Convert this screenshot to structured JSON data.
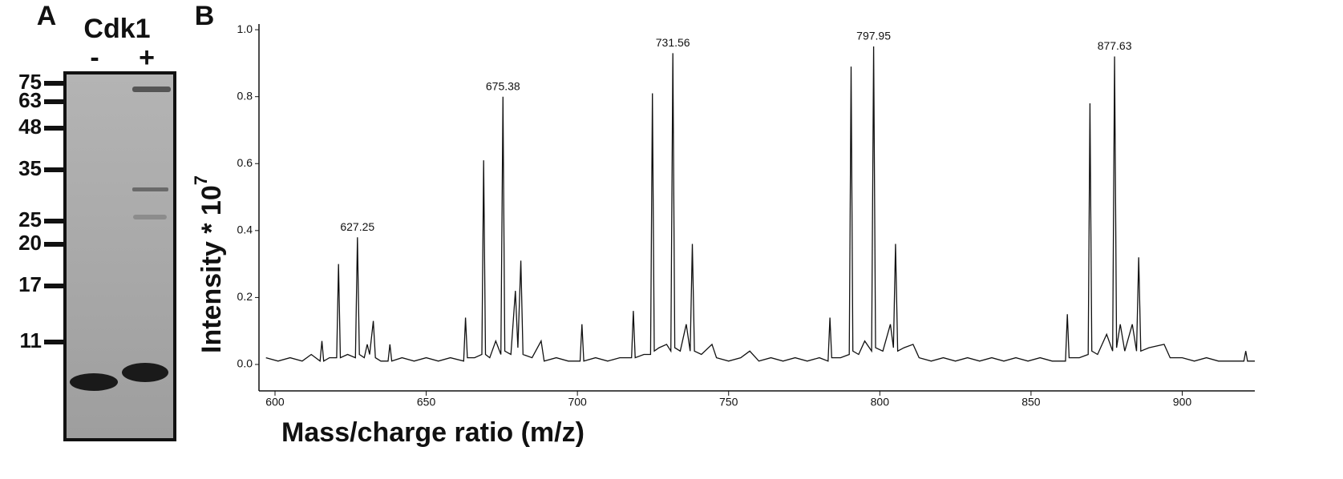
{
  "panel_a": {
    "label": "A",
    "protein": "Cdk1",
    "lanes": [
      "-",
      "+"
    ],
    "markers": [
      75,
      63,
      48,
      35,
      25,
      20,
      17,
      11
    ]
  },
  "chart_data": {
    "type": "line",
    "label": "B",
    "xlabel": "Mass/charge ratio (m/z)",
    "ylabel": "Intensity * 10",
    "ylabel_exponent": "7",
    "color": "#111111",
    "xlim": [
      594.7,
      924
    ],
    "ylim": [
      -0.079,
      1.017
    ],
    "xticks": [
      600,
      650,
      700,
      750,
      800,
      850,
      900
    ],
    "yticks": [
      {
        "value": 0,
        "label": "0.0"
      },
      0.2,
      0.4,
      0.6,
      0.8,
      {
        "value": 1,
        "label": "1.0"
      }
    ],
    "peak_labels": [
      627.25,
      675.38,
      731.56,
      797.95,
      877.63
    ],
    "x": [
      597,
      601,
      605,
      609,
      612,
      614.9,
      615.5,
      616.1,
      618,
      620.4,
      621,
      621.6,
      624,
      626.6,
      627.25,
      627.9,
      629.5,
      630.5,
      631.3,
      632.5,
      633.2,
      635,
      637.4,
      638,
      638.6,
      642,
      646,
      650,
      654,
      658,
      662.4,
      663,
      663.6,
      666,
      668.4,
      669,
      669.6,
      671,
      673,
      674.7,
      675.38,
      676,
      678,
      679.5,
      680.3,
      681.3,
      682,
      685,
      688,
      689,
      693,
      697,
      700.9,
      701.5,
      702.1,
      706,
      710,
      714,
      717.9,
      718.5,
      719.1,
      722,
      724.2,
      724.8,
      725.4,
      727,
      729.5,
      730.9,
      731.56,
      732.2,
      734,
      736,
      737.3,
      738,
      738.7,
      741,
      744.5,
      746,
      750,
      754,
      757,
      760,
      764,
      768,
      772,
      776,
      780,
      782.9,
      783.5,
      784.1,
      787,
      789.9,
      790.5,
      791.1,
      793,
      795,
      797.3,
      797.95,
      798.6,
      801,
      803.5,
      804.5,
      805.2,
      805.9,
      808,
      811,
      813,
      817,
      821,
      825,
      829,
      833,
      837,
      841,
      845,
      849,
      853,
      857,
      861.4,
      862,
      862.6,
      866,
      868.9,
      869.5,
      870.1,
      872,
      875,
      877,
      877.63,
      878.3,
      879.5,
      881,
      883.5,
      884.9,
      885.6,
      886.3,
      889,
      894,
      896,
      900,
      904,
      908,
      912,
      916,
      920.4,
      921,
      921.6,
      924
    ],
    "values": [
      0.02,
      0.01,
      0.02,
      0.01,
      0.03,
      0.01,
      0.07,
      0.01,
      0.02,
      0.02,
      0.3,
      0.02,
      0.03,
      0.02,
      0.38,
      0.03,
      0.02,
      0.06,
      0.03,
      0.13,
      0.02,
      0.01,
      0.01,
      0.06,
      0.01,
      0.02,
      0.01,
      0.02,
      0.01,
      0.02,
      0.01,
      0.14,
      0.02,
      0.02,
      0.03,
      0.61,
      0.03,
      0.02,
      0.07,
      0.03,
      0.8,
      0.04,
      0.03,
      0.22,
      0.05,
      0.31,
      0.03,
      0.02,
      0.07,
      0.01,
      0.02,
      0.01,
      0.01,
      0.12,
      0.01,
      0.02,
      0.01,
      0.02,
      0.02,
      0.16,
      0.02,
      0.03,
      0.03,
      0.81,
      0.04,
      0.05,
      0.06,
      0.04,
      0.93,
      0.05,
      0.04,
      0.12,
      0.04,
      0.36,
      0.04,
      0.03,
      0.06,
      0.02,
      0.01,
      0.02,
      0.04,
      0.01,
      0.02,
      0.01,
      0.02,
      0.01,
      0.02,
      0.01,
      0.14,
      0.02,
      0.02,
      0.03,
      0.89,
      0.04,
      0.03,
      0.07,
      0.04,
      0.95,
      0.05,
      0.04,
      0.12,
      0.05,
      0.36,
      0.04,
      0.05,
      0.06,
      0.02,
      0.01,
      0.02,
      0.01,
      0.02,
      0.01,
      0.02,
      0.01,
      0.02,
      0.01,
      0.02,
      0.01,
      0.01,
      0.15,
      0.02,
      0.02,
      0.03,
      0.78,
      0.04,
      0.03,
      0.09,
      0.04,
      0.92,
      0.05,
      0.12,
      0.04,
      0.12,
      0.04,
      0.32,
      0.04,
      0.05,
      0.06,
      0.02,
      0.02,
      0.01,
      0.02,
      0.01,
      0.01,
      0.01,
      0.04,
      0.01,
      0.01
    ]
  }
}
